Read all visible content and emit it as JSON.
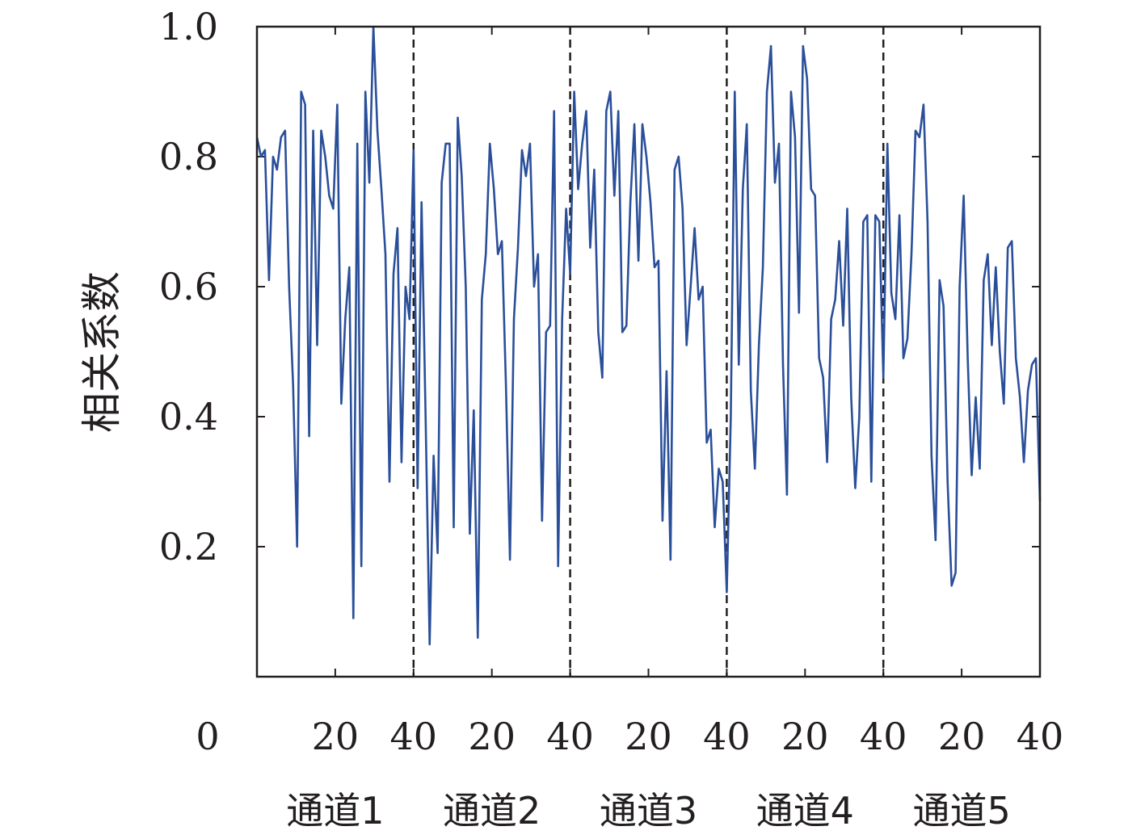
{
  "chart_data": {
    "type": "line",
    "title": "",
    "xlabel": "",
    "ylabel": "相关系数",
    "ylim": [
      0,
      1.0
    ],
    "xlim": [
      0,
      200
    ],
    "y_ticks": [
      0.2,
      0.4,
      0.6,
      0.8,
      1.0
    ],
    "y_tick_labels": [
      "0.2",
      "0.4",
      "0.6",
      "0.8",
      "1.0"
    ],
    "x_ticks": [
      0,
      20,
      40,
      60,
      80,
      100,
      120,
      140,
      160,
      180,
      200
    ],
    "x_tick_labels": [
      "0",
      "20",
      "40",
      "20",
      "40",
      "20",
      "40",
      "20",
      "40",
      "20",
      "40"
    ],
    "group_boundaries": [
      40,
      80,
      120,
      160
    ],
    "groups": [
      "通道1",
      "通道2",
      "通道3",
      "通道4",
      "通道5"
    ],
    "grid": false,
    "colors": {
      "series": "#2a4f9a",
      "axis": "#231f20"
    },
    "series": [
      {
        "values": [
          0.83,
          0.8,
          0.81,
          0.61,
          0.8,
          0.78,
          0.83,
          0.84,
          0.6,
          0.45,
          0.2,
          0.9,
          0.88,
          0.37,
          0.84,
          0.51,
          0.84,
          0.8,
          0.74,
          0.72,
          0.88,
          0.42,
          0.55,
          0.63,
          0.09,
          0.82,
          0.17,
          0.9,
          0.76,
          1.0,
          0.84,
          0.75,
          0.65,
          0.3,
          0.62,
          0.69,
          0.33,
          0.6,
          0.55,
          0.81,
          0.29,
          0.73,
          0.4,
          0.05,
          0.34,
          0.19,
          0.76,
          0.82,
          0.82,
          0.23,
          0.86,
          0.77,
          0.6,
          0.22,
          0.41,
          0.06,
          0.58,
          0.65,
          0.82,
          0.75,
          0.65,
          0.67,
          0.45,
          0.18,
          0.55,
          0.66,
          0.81,
          0.77,
          0.82,
          0.6,
          0.65,
          0.24,
          0.53,
          0.54,
          0.87,
          0.17,
          0.55,
          0.72,
          0.62,
          0.9,
          0.75,
          0.82,
          0.87,
          0.66,
          0.78,
          0.53,
          0.46,
          0.87,
          0.9,
          0.74,
          0.87,
          0.53,
          0.54,
          0.73,
          0.85,
          0.64,
          0.85,
          0.8,
          0.73,
          0.63,
          0.64,
          0.24,
          0.47,
          0.18,
          0.78,
          0.8,
          0.72,
          0.51,
          0.6,
          0.69,
          0.58,
          0.6,
          0.36,
          0.38,
          0.23,
          0.32,
          0.3,
          0.13,
          0.4,
          0.9,
          0.48,
          0.75,
          0.85,
          0.44,
          0.32,
          0.51,
          0.63,
          0.9,
          0.97,
          0.76,
          0.82,
          0.48,
          0.28,
          0.9,
          0.83,
          0.56,
          0.97,
          0.92,
          0.75,
          0.74,
          0.49,
          0.46,
          0.33,
          0.55,
          0.58,
          0.67,
          0.54,
          0.72,
          0.43,
          0.29,
          0.4,
          0.7,
          0.71,
          0.3,
          0.71,
          0.7,
          0.46,
          0.82,
          0.59,
          0.55,
          0.71,
          0.49,
          0.52,
          0.65,
          0.84,
          0.83,
          0.88,
          0.7,
          0.34,
          0.21,
          0.61,
          0.57,
          0.3,
          0.14,
          0.16,
          0.6,
          0.74,
          0.49,
          0.31,
          0.43,
          0.32,
          0.61,
          0.65,
          0.51,
          0.63,
          0.5,
          0.42,
          0.66,
          0.67,
          0.49,
          0.43,
          0.33,
          0.44,
          0.48,
          0.49,
          0.27
        ]
      }
    ]
  }
}
